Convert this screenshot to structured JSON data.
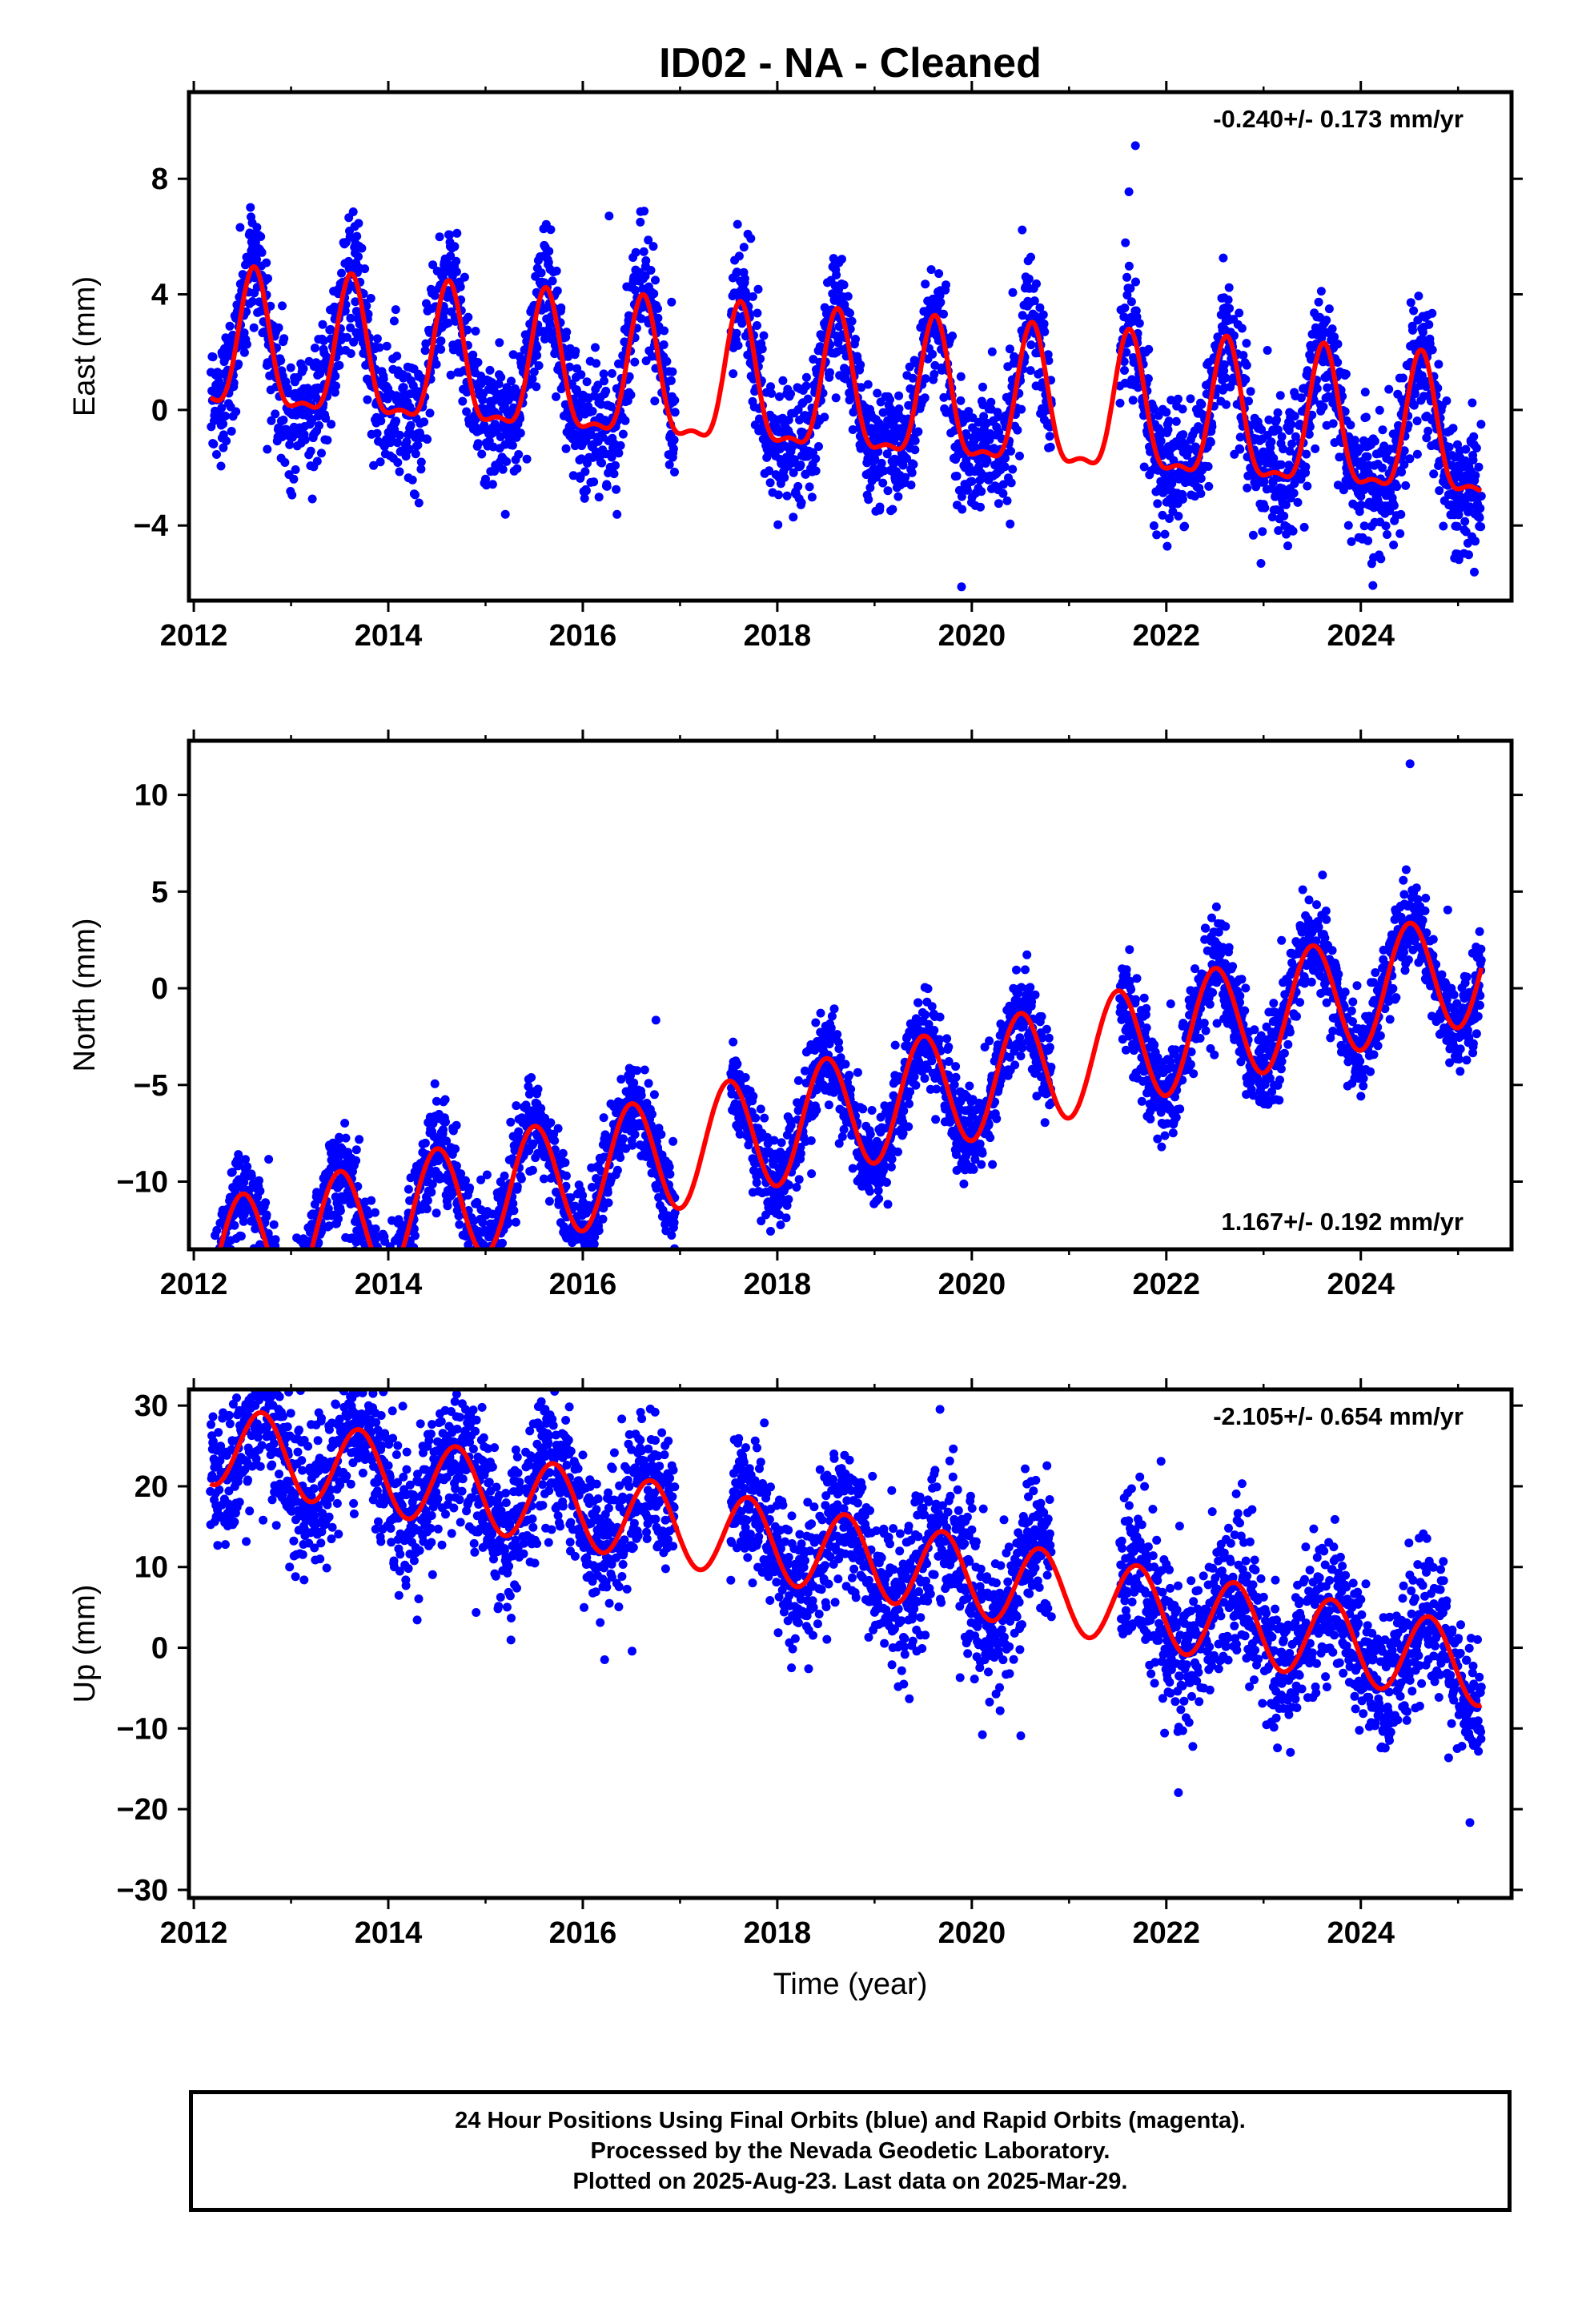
{
  "title": "ID02  - NA - Cleaned",
  "colors": {
    "points": "#0000ff",
    "fit": "#ff0000",
    "frame": "#000000",
    "rapid_points": "#ff00ff"
  },
  "chart_data": [
    {
      "type": "scatter",
      "component": "east",
      "ylabel": "East (mm)",
      "xlabel": "",
      "xlim": [
        2011.95,
        2025.55
      ],
      "ylim": [
        -6.6,
        11.0
      ],
      "yticks": [
        -4,
        0,
        4,
        8
      ],
      "yticklabels": [
        "−4",
        "0",
        "4",
        "8"
      ],
      "xticks": [
        2012,
        2014,
        2016,
        2018,
        2020,
        2022,
        2024
      ],
      "xticklabels": [
        "2012",
        "2014",
        "2016",
        "2018",
        "2020",
        "2022",
        "2024"
      ],
      "rate_label": "-0.240+/- 0.173 mm/yr",
      "rate_position": "top-right",
      "data_span": [
        2012.17,
        2025.24
      ],
      "gaps": [
        [
          2016.95,
          2017.52
        ],
        [
          2020.82,
          2021.52
        ]
      ],
      "model": {
        "trend_mm_per_yr": -0.24,
        "offset_mm": 0.4,
        "annual_amp_mm": 2.3,
        "annual_peak_year_fraction": 0.62,
        "semiannual_amp_mm": 0.8
      },
      "scatter_sigma_mm": 1.1,
      "grid": false,
      "legend": "none"
    },
    {
      "type": "scatter",
      "component": "north",
      "ylabel": "North (mm)",
      "xlabel": "",
      "xlim": [
        2011.95,
        2025.55
      ],
      "ylim": [
        -13.5,
        12.8
      ],
      "yticks": [
        -10,
        -5,
        0,
        5,
        10
      ],
      "yticklabels": [
        "−10",
        "−5",
        "0",
        "5",
        "10"
      ],
      "xticks": [
        2012,
        2014,
        2016,
        2018,
        2020,
        2022,
        2024
      ],
      "xticklabels": [
        "2012",
        "2014",
        "2016",
        "2018",
        "2020",
        "2022",
        "2024"
      ],
      "rate_label": "1.167+/- 0.192 mm/yr",
      "rate_position": "bottom-right",
      "data_span": [
        2012.17,
        2025.24
      ],
      "gaps": [
        [
          2016.95,
          2017.52
        ],
        [
          2020.82,
          2021.52
        ]
      ],
      "model": {
        "trend_mm_per_yr": 1.167,
        "offset_mm": -6.4,
        "annual_amp_mm": 3.0,
        "annual_peak_year_fraction": 0.5,
        "semiannual_amp_mm": 0.0
      },
      "scatter_sigma_mm": 1.2,
      "grid": false,
      "legend": "none"
    },
    {
      "type": "scatter",
      "component": "up",
      "ylabel": "Up (mm)",
      "xlabel": "Time (year)",
      "xlim": [
        2011.95,
        2025.55
      ],
      "ylim": [
        -31.0,
        32.0
      ],
      "yticks": [
        -30,
        -20,
        -10,
        0,
        10,
        20,
        30
      ],
      "yticklabels": [
        "−30",
        "−20",
        "−10",
        "0",
        "10",
        "20",
        "30"
      ],
      "xticks": [
        2012,
        2014,
        2016,
        2018,
        2020,
        2022,
        2024
      ],
      "xticklabels": [
        "2012",
        "2014",
        "2016",
        "2018",
        "2020",
        "2022",
        "2024"
      ],
      "rate_label": "-2.105+/- 0.654 mm/yr",
      "rate_position": "top-right",
      "data_span": [
        2012.17,
        2025.24
      ],
      "gaps": [
        [
          2016.95,
          2017.52
        ],
        [
          2020.82,
          2021.52
        ]
      ],
      "model": {
        "trend_mm_per_yr": -2.105,
        "offset_mm": 11.5,
        "annual_amp_mm": 5.0,
        "annual_peak_year_fraction": 0.7,
        "semiannual_amp_mm": 0.0
      },
      "scatter_sigma_mm": 4.5,
      "grid": false,
      "legend": "none"
    }
  ],
  "footer": {
    "line1": "24 Hour Positions Using Final Orbits (blue) and Rapid Orbits (magenta).",
    "line2": "Processed by the Nevada Geodetic Laboratory.",
    "line3": "Plotted on 2025-Aug-23. Last data on 2025-Mar-29."
  }
}
